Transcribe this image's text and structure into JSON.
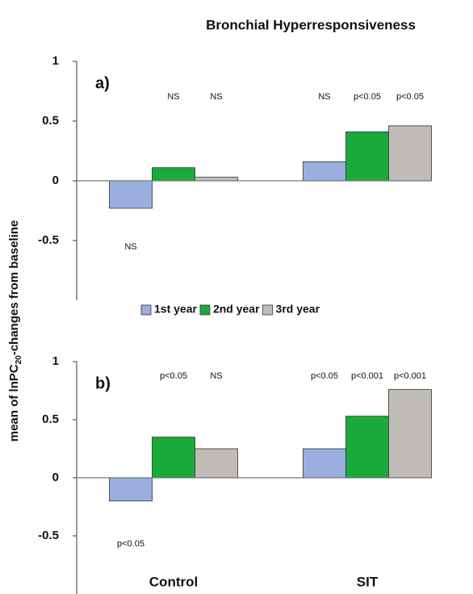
{
  "chart_data": [
    {
      "type": "bar",
      "title": "Bronchial Hyperresponsiveness",
      "ylabel_parts": [
        "mean of lnPC",
        "20",
        "-changes from baseline"
      ],
      "panel_label": "a)",
      "categories": [
        null,
        null
      ],
      "ylim": [
        -1,
        1
      ],
      "yticks": [
        -0.5,
        0,
        0.5,
        1
      ],
      "legend": "bottom",
      "series": [
        {
          "name": "1st year",
          "color": "#9aaee0",
          "values": [
            -0.23,
            0.16
          ],
          "annotations": [
            "NS",
            "NS"
          ]
        },
        {
          "name": "2nd year",
          "color": "#1aaa3a",
          "values": [
            0.11,
            0.41
          ],
          "annotations": [
            "NS",
            "p<0.05"
          ]
        },
        {
          "name": "3rd year",
          "color": "#c0bcb8",
          "values": [
            0.03,
            0.46
          ],
          "annotations": [
            "NS",
            "p<0.05"
          ]
        }
      ]
    },
    {
      "type": "bar",
      "panel_label": "b)",
      "categories": [
        "Control",
        "SIT"
      ],
      "ylim": [
        -1,
        1
      ],
      "yticks": [
        -0.5,
        0,
        0.5,
        1
      ],
      "series": [
        {
          "name": "1st year",
          "color": "#9aaee0",
          "values": [
            -0.2,
            0.25
          ],
          "annotations": [
            "p<0.05",
            "p<0.05"
          ]
        },
        {
          "name": "2nd year",
          "color": "#1aaa3a",
          "values": [
            0.35,
            0.53
          ],
          "annotations": [
            "p<0.05",
            "p<0.001"
          ]
        },
        {
          "name": "3rd year",
          "color": "#c0bcb8",
          "values": [
            0.25,
            0.76
          ],
          "annotations": [
            "NS",
            "p<0.001"
          ]
        }
      ]
    }
  ]
}
